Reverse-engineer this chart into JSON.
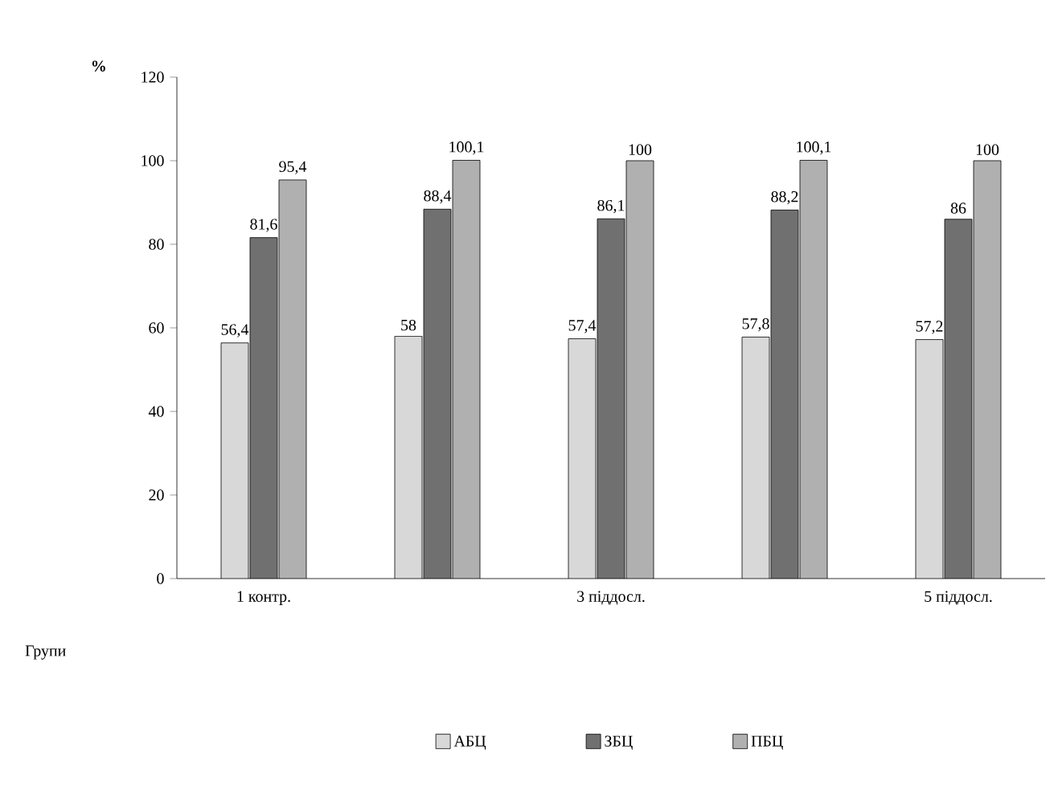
{
  "chart_data": {
    "type": "bar",
    "ylabel": "%",
    "annotations": [
      "Групи"
    ],
    "categories": [
      "1 контр.",
      null,
      "3 піддосл.",
      null,
      "5 піддосл."
    ],
    "series": [
      {
        "name": "АБЦ",
        "color": "#d8d8d8",
        "values": [
          56.4,
          58,
          57.4,
          57.8,
          57.2
        ],
        "value_labels": [
          "56,4",
          "58",
          "57,4",
          "57,8",
          "57,2"
        ]
      },
      {
        "name": "ЗБЦ",
        "color": "#707070",
        "values": [
          81.6,
          88.4,
          86.1,
          88.2,
          86
        ],
        "value_labels": [
          "81,6",
          "88,4",
          "86,1",
          "88,2",
          "86"
        ]
      },
      {
        "name": "ПБЦ",
        "color": "#b0b0b0",
        "values": [
          95.4,
          100.1,
          100,
          100.1,
          100
        ],
        "value_labels": [
          "95,4",
          "100,1",
          "100",
          "100,1",
          "100"
        ]
      }
    ],
    "ylim": [
      0,
      120
    ],
    "yticks": [
      0,
      20,
      40,
      60,
      80,
      100,
      120
    ],
    "grid": false,
    "legend": "bottom"
  }
}
